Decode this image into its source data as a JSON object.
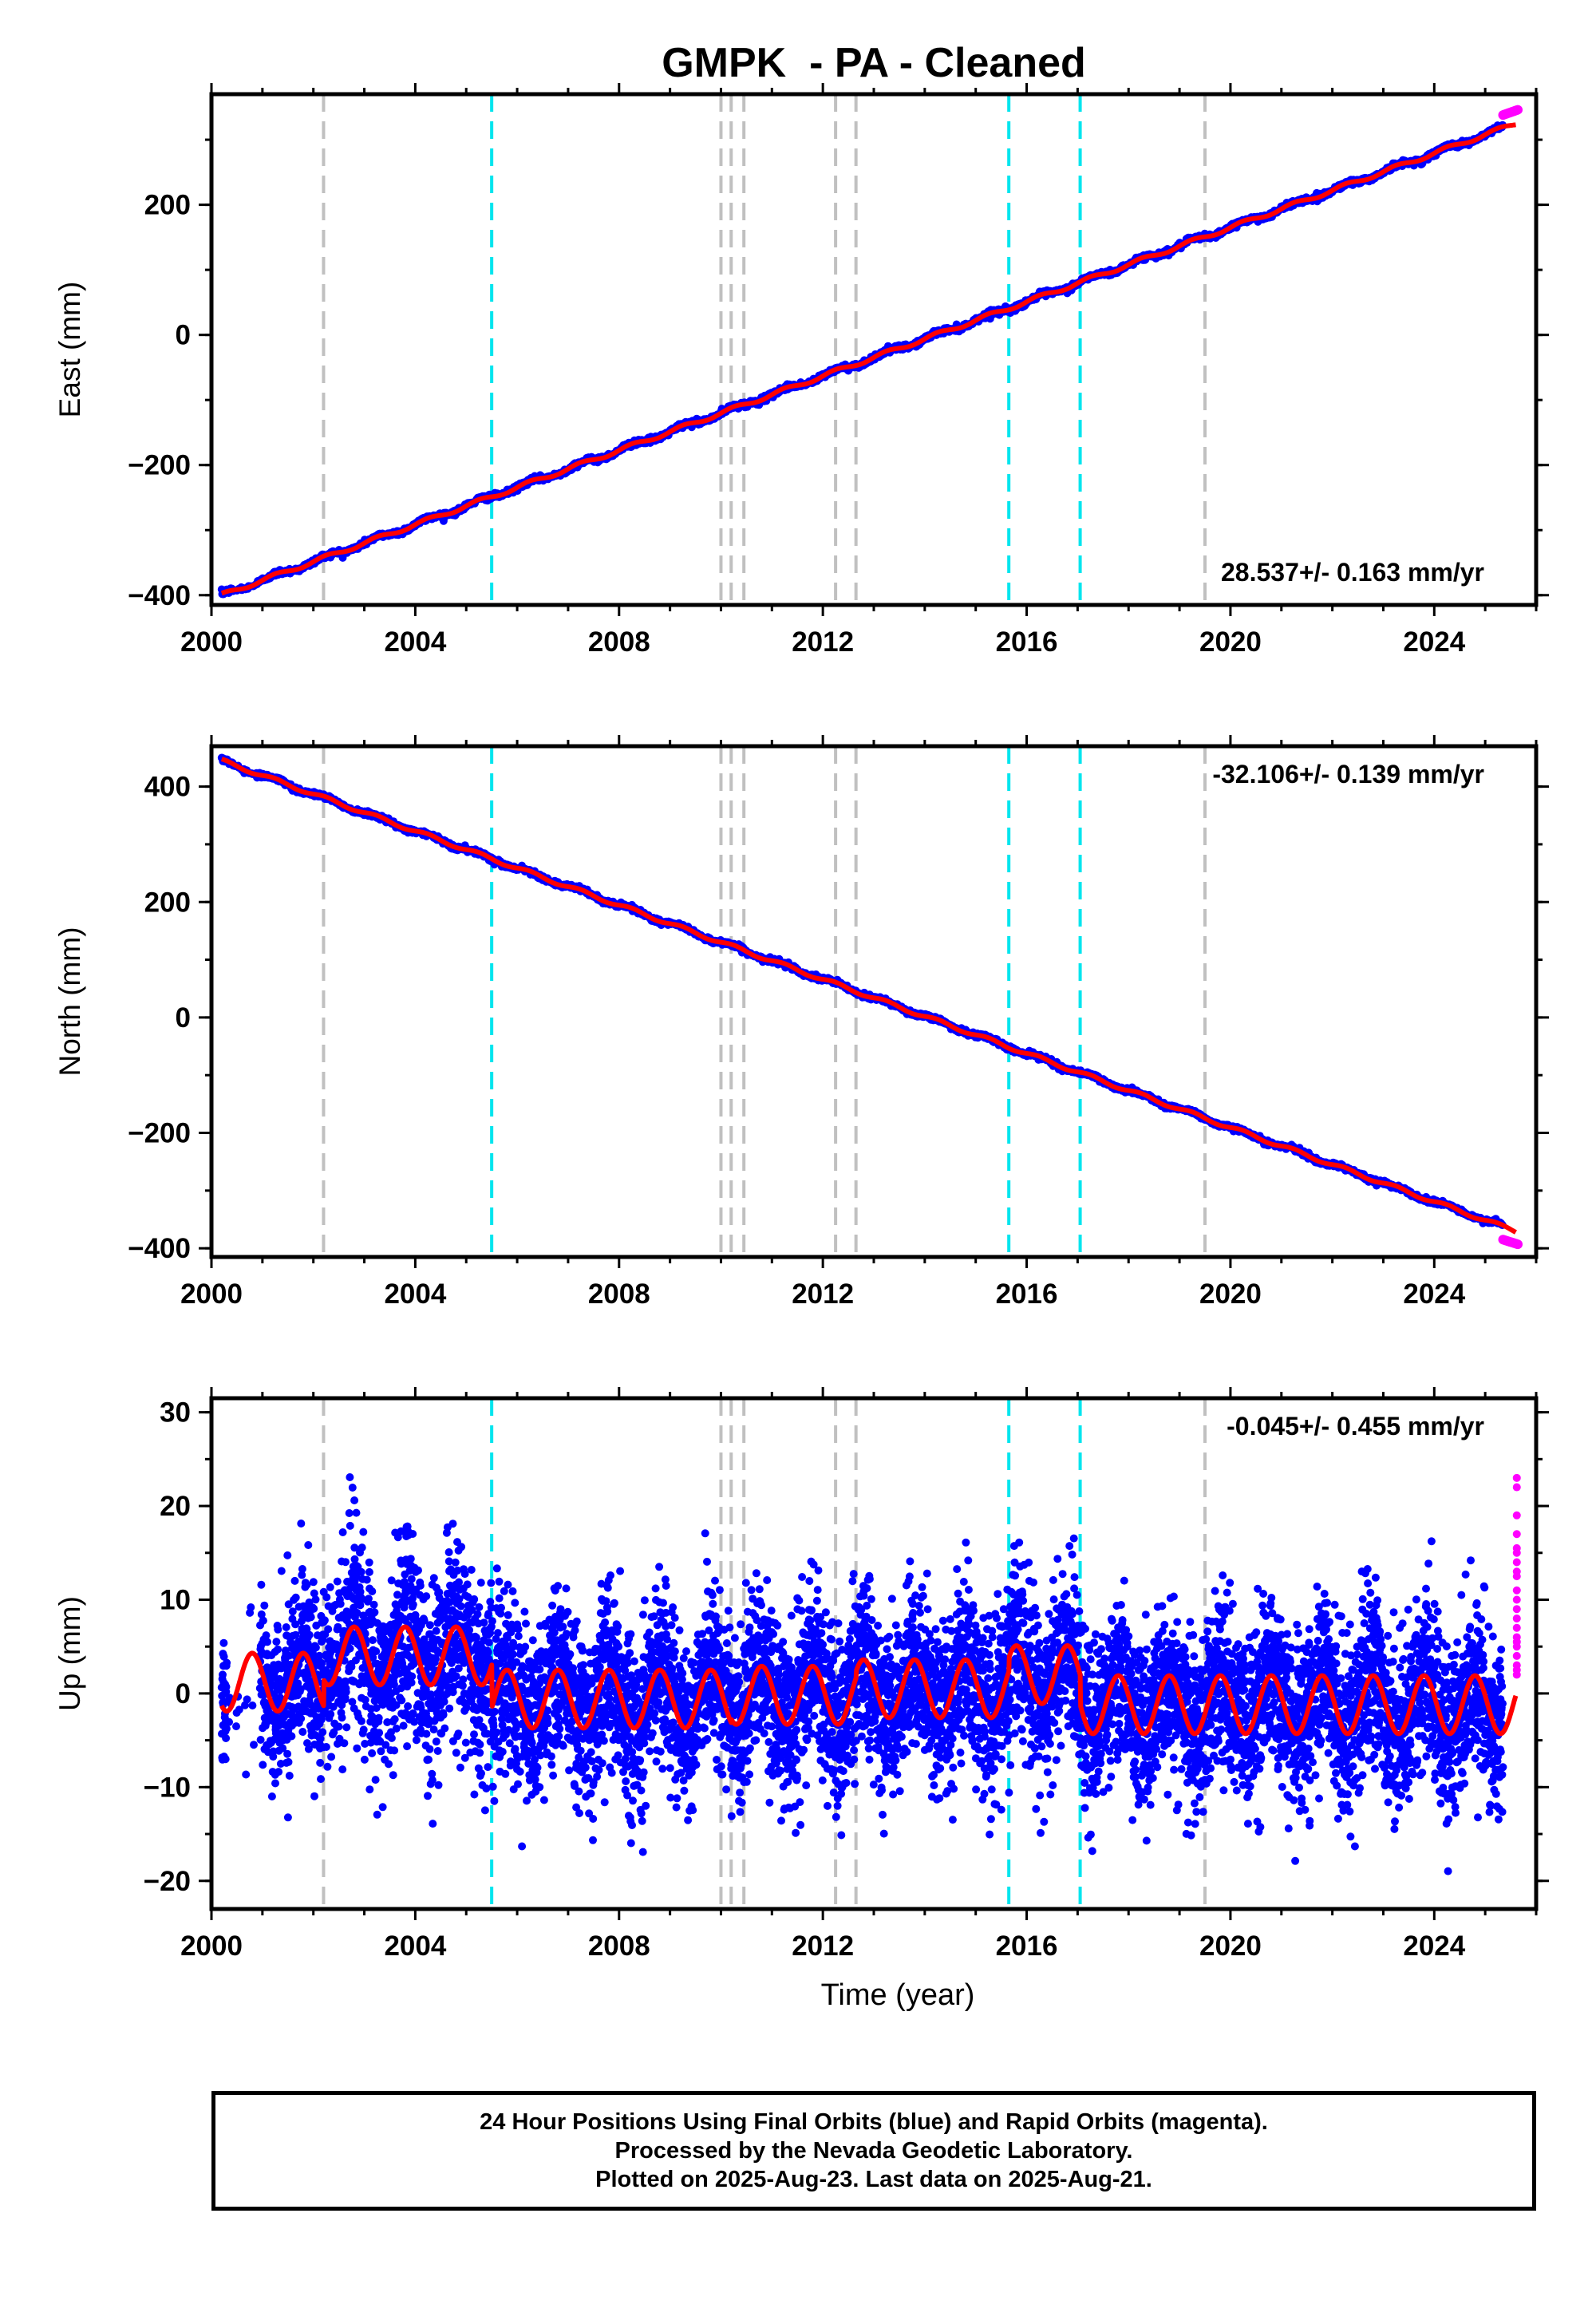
{
  "title": "GMPK  - PA - Cleaned",
  "footer": {
    "line1": "24 Hour Positions Using Final Orbits (blue) and Rapid Orbits (magenta).",
    "line2": "Processed by the Nevada Geodetic Laboratory.",
    "line3": "Plotted on 2025-Aug-23. Last data on 2025-Aug-21."
  },
  "colors": {
    "final_orbits": "#0000ff",
    "rapid_orbits": "#ff00ff",
    "model_fit": "#ff0000",
    "equipment_change": "#00e5ee",
    "earthquake_event": "#c0c0c0"
  },
  "event_lines": {
    "gray": [
      2002.2,
      2010.0,
      2010.2,
      2010.45,
      2012.25,
      2012.65,
      2019.5
    ],
    "cyan": [
      2005.5,
      2015.65,
      2017.05
    ]
  },
  "chart_data": [
    {
      "type": "scatter",
      "name": "east",
      "ylabel": "East (mm)",
      "xlabel": "",
      "xlim": [
        2000.0,
        2026.0
      ],
      "ylim": [
        -415,
        370
      ],
      "xticks": [
        "2000",
        "2004",
        "2008",
        "2012",
        "2016",
        "2020",
        "2024"
      ],
      "yticks": [
        "−400",
        "−200",
        "0",
        "200"
      ],
      "ytick_values": [
        -400,
        -200,
        0,
        200
      ],
      "rate_label": "28.537+/- 0.163 mm/yr",
      "rate_position": "bottom-right",
      "fit": {
        "kind": "linear",
        "x0": 2000.2,
        "y0": -400,
        "rate_mm_per_yr": 28.537,
        "x_end": 2025.6
      },
      "rapid_points": {
        "x_start": 2025.35,
        "x_end": 2025.64,
        "y_start": 338,
        "y_end": 346
      }
    },
    {
      "type": "scatter",
      "name": "north",
      "ylabel": "North (mm)",
      "xlabel": "",
      "xlim": [
        2000.0,
        2026.0
      ],
      "ylim": [
        -415,
        470
      ],
      "xticks": [
        "2000",
        "2004",
        "2008",
        "2012",
        "2016",
        "2020",
        "2024"
      ],
      "yticks": [
        "−400",
        "−200",
        "0",
        "200",
        "400"
      ],
      "ytick_values": [
        -400,
        -200,
        0,
        200,
        400
      ],
      "rate_label": "-32.106+/- 0.139 mm/yr",
      "rate_position": "top-right",
      "fit": {
        "kind": "linear",
        "x0": 2000.2,
        "y0": 445,
        "rate_mm_per_yr": -32.106,
        "x_end": 2025.6
      },
      "rapid_points": {
        "x_start": 2025.35,
        "x_end": 2025.64,
        "y_start": -385,
        "y_end": -393
      }
    },
    {
      "type": "scatter",
      "name": "up",
      "ylabel": "Up (mm)",
      "xlabel": "Time (year)",
      "xlim": [
        2000.0,
        2026.0
      ],
      "ylim": [
        -23,
        31.5
      ],
      "xticks": [
        "2000",
        "2004",
        "2008",
        "2012",
        "2016",
        "2020",
        "2024"
      ],
      "yticks": [
        "30",
        "20",
        "10",
        "0",
        "−10",
        "−20"
      ],
      "ytick_values": [
        30,
        20,
        10,
        0,
        -10,
        -20
      ],
      "rate_label": "-0.045+/- 0.455 mm/yr",
      "rate_position": "top-right",
      "fit": {
        "kind": "seasonal",
        "x0": 2000.2,
        "x_end": 2025.6,
        "amplitude": 3.1,
        "offsets": [
          [
            2000.2,
            1.2
          ],
          [
            2002.2,
            4.0
          ],
          [
            2005.5,
            -0.6
          ],
          [
            2010.2,
            -0.2
          ],
          [
            2012.65,
            0.5
          ],
          [
            2015.65,
            2.0
          ],
          [
            2017.05,
            -1.2
          ]
        ]
      },
      "scatter_std_mm": 4.5,
      "rapid_points": {
        "values": [
          23,
          22,
          19,
          17,
          15.5,
          15,
          14,
          13,
          12.5,
          11,
          10,
          9,
          8,
          7,
          6,
          5.5,
          5,
          4,
          3,
          2.5,
          2
        ]
      }
    }
  ]
}
